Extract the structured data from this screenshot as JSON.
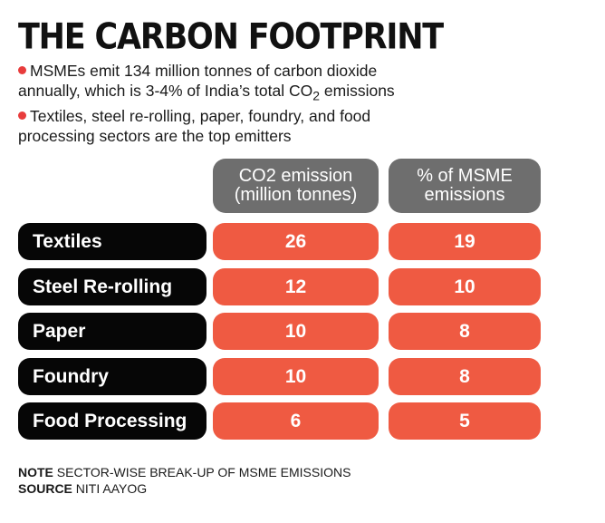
{
  "title": "THE CARBON FOOTPRINT",
  "bullets": [
    {
      "pre": "MSMEs emit 134 million tonnes of carbon dioxide",
      "line2": "annually, which is 3-4% of India’s total CO",
      "sub": "2",
      "post": " emissions"
    },
    {
      "pre": "Textiles, steel re-rolling, paper, foundry, and food",
      "line2": "processing sectors are the top emitters",
      "sub": "",
      "post": ""
    }
  ],
  "colors": {
    "bullet": "#e83c3c",
    "header_bg": "#6e6e6e",
    "label_bg": "#060606",
    "cell_bg": "#ef5a42"
  },
  "chart_data": {
    "type": "table",
    "title": "THE CARBON FOOTPRINT",
    "columns": [
      {
        "line1": "CO2 emission",
        "line2": "(million tonnes)"
      },
      {
        "line1": "% of MSME",
        "line2": "emissions"
      }
    ],
    "rows": [
      {
        "sector": "Textiles",
        "co2": "26",
        "pct": "19"
      },
      {
        "sector": "Steel Re-rolling",
        "co2": "12",
        "pct": "10"
      },
      {
        "sector": "Paper",
        "co2": "10",
        "pct": "8"
      },
      {
        "sector": "Foundry",
        "co2": "10",
        "pct": "8"
      },
      {
        "sector": "Food Processing",
        "co2": "6",
        "pct": "5"
      }
    ]
  },
  "footer": {
    "note_label": "NOTE",
    "note_text": " SECTOR-WISE BREAK-UP OF MSME EMISSIONS",
    "source_label": "SOURCE",
    "source_text": " NITI AAYOG"
  }
}
